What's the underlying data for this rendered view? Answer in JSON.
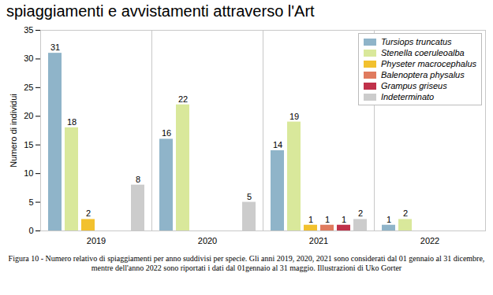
{
  "chart_data": {
    "type": "bar",
    "title": "spiaggiamenti e avvistamenti attraverso l'Art",
    "y_label": "Numero di individui",
    "caption": "Figura 10 - Numero relativo di spiaggiamenti per anno suddivisi per specie. Gli anni 2019, 2020, 2021 sono considerati dal 01 gennaio al 31 dicembre, mentre dell'anno 2022 sono riportati i dati dal 01gennaio al 31 maggio. Illustrazioni di Uko Gorter",
    "categories": [
      "2019",
      "2020",
      "2021",
      "2022"
    ],
    "series": [
      {
        "name": "Tursiops truncatus",
        "color": "#8fb4c9",
        "values": [
          31,
          16,
          14,
          1
        ]
      },
      {
        "name": "Stenella coeruleoalba",
        "color": "#d9e89b",
        "values": [
          18,
          22,
          19,
          2
        ]
      },
      {
        "name": "Physeter macrocephalus",
        "color": "#f2c12e",
        "values": [
          2,
          null,
          1,
          null
        ]
      },
      {
        "name": "Balenoptera physalus",
        "color": "#e07b5e",
        "values": [
          null,
          null,
          1,
          null
        ]
      },
      {
        "name": "Grampus griseus",
        "color": "#c0314a",
        "values": [
          null,
          null,
          1,
          null
        ]
      },
      {
        "name": "Indeterminato",
        "color": "#cccccc",
        "values": [
          8,
          5,
          2,
          null
        ]
      }
    ],
    "ylim": [
      0,
      35
    ],
    "yticks": [
      0,
      5,
      10,
      15,
      20,
      25,
      30,
      35
    ],
    "grid": false,
    "legend": "top-right",
    "data_labels": true
  }
}
